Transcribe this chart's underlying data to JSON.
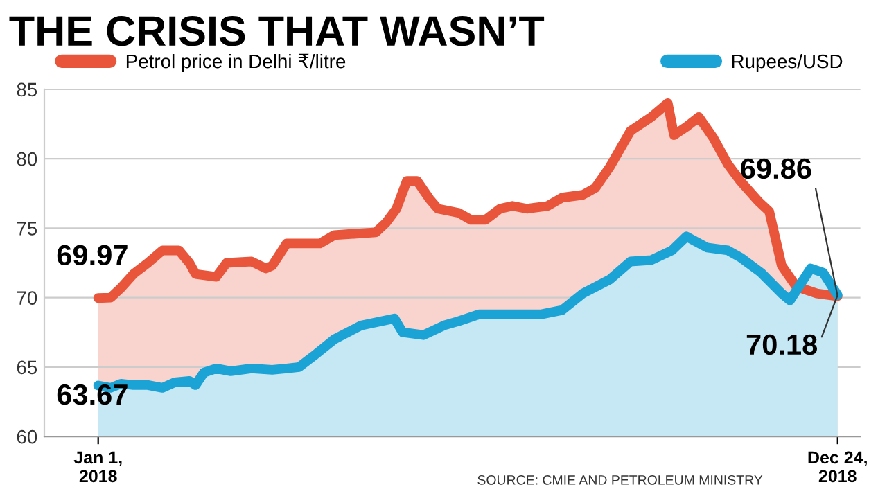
{
  "chart_data": {
    "type": "area",
    "title": "THE CRISIS THAT WASN’T",
    "series": [
      {
        "name": "Petrol price in Delhi ₹/litre",
        "color": "#e8553a",
        "x": [
          "2018-01-01",
          "2018-01-07",
          "2018-01-12",
          "2018-01-18",
          "2018-01-25",
          "2018-02-01",
          "2018-02-09",
          "2018-02-14",
          "2018-02-17",
          "2018-02-27",
          "2018-03-04",
          "2018-03-16",
          "2018-03-23",
          "2018-03-26",
          "2018-04-02",
          "2018-04-18",
          "2018-04-25",
          "2018-05-15",
          "2018-05-20",
          "2018-05-25",
          "2018-05-30",
          "2018-06-04",
          "2018-06-10",
          "2018-06-14",
          "2018-06-24",
          "2018-06-30",
          "2018-07-07",
          "2018-07-14",
          "2018-07-20",
          "2018-07-27",
          "2018-08-06",
          "2018-08-13",
          "2018-08-23",
          "2018-08-29",
          "2018-09-05",
          "2018-09-15",
          "2018-09-25",
          "2018-10-03",
          "2018-10-06",
          "2018-10-12",
          "2018-10-18",
          "2018-10-25",
          "2018-11-01",
          "2018-11-07",
          "2018-11-16",
          "2018-11-21",
          "2018-11-27",
          "2018-12-04",
          "2018-12-14",
          "2018-12-24"
        ],
        "values": [
          69.97,
          70.0,
          70.7,
          71.7,
          72.5,
          73.4,
          73.4,
          72.5,
          71.7,
          71.5,
          72.5,
          72.6,
          72.1,
          72.3,
          73.9,
          73.9,
          74.5,
          74.7,
          75.4,
          76.4,
          78.4,
          78.4,
          77.1,
          76.4,
          76.1,
          75.6,
          75.6,
          76.4,
          76.6,
          76.4,
          76.6,
          77.2,
          77.4,
          77.9,
          79.4,
          82.0,
          83.0,
          84.0,
          81.7,
          82.3,
          83.0,
          81.5,
          79.6,
          78.4,
          76.9,
          76.2,
          72.3,
          70.8,
          70.3,
          70.1
        ]
      },
      {
        "name": "Rupees/USD",
        "color": "#1ba3d6",
        "x": [
          "2018-01-01",
          "2018-01-07",
          "2018-01-12",
          "2018-01-18",
          "2018-01-25",
          "2018-02-01",
          "2018-02-07",
          "2018-02-14",
          "2018-02-17",
          "2018-02-21",
          "2018-02-27",
          "2018-03-06",
          "2018-03-16",
          "2018-03-26",
          "2018-04-02",
          "2018-04-08",
          "2018-04-15",
          "2018-04-25",
          "2018-05-08",
          "2018-05-24",
          "2018-05-28",
          "2018-06-07",
          "2018-06-17",
          "2018-06-24",
          "2018-07-04",
          "2018-07-20",
          "2018-08-03",
          "2018-08-13",
          "2018-08-23",
          "2018-09-05",
          "2018-09-15",
          "2018-09-25",
          "2018-10-05",
          "2018-10-12",
          "2018-10-22",
          "2018-11-01",
          "2018-11-07",
          "2018-11-17",
          "2018-11-27",
          "2018-12-01",
          "2018-12-11",
          "2018-12-17",
          "2018-12-24"
        ],
        "values": [
          63.67,
          63.5,
          63.8,
          63.7,
          63.7,
          63.5,
          63.9,
          64.0,
          63.7,
          64.6,
          64.9,
          64.7,
          64.9,
          64.8,
          64.9,
          65.0,
          65.8,
          67.0,
          68.0,
          68.5,
          67.5,
          67.3,
          68.0,
          68.3,
          68.8,
          68.8,
          68.8,
          69.1,
          70.3,
          71.3,
          72.6,
          72.7,
          73.4,
          74.4,
          73.6,
          73.4,
          72.9,
          71.8,
          70.3,
          69.8,
          72.1,
          71.8,
          70.18
        ]
      }
    ],
    "xlim": [
      "2017-12-06",
      "2019-01-04"
    ],
    "xticks": [
      {
        "value": "2018-01-01",
        "label": "Jan 1,\n2018"
      },
      {
        "value": "2018-12-24",
        "label": "Dec 24,\n2018"
      }
    ],
    "ylim": [
      60,
      85
    ],
    "yticks": [
      60,
      65,
      70,
      75,
      80,
      85
    ],
    "grid": "y",
    "legend": "top",
    "annotations": [
      {
        "text": "69.97",
        "x": "2018-01-01",
        "y": 69.97
      },
      {
        "text": "63.67",
        "x": "2018-01-01",
        "y": 63.67
      },
      {
        "text": "69.86",
        "x": "2018-12-24",
        "y": 70.1
      },
      {
        "text": "70.18",
        "x": "2018-12-24",
        "y": 70.18
      },
      "SOURCE: CMIE AND PETROLEUM MINISTRY"
    ]
  }
}
